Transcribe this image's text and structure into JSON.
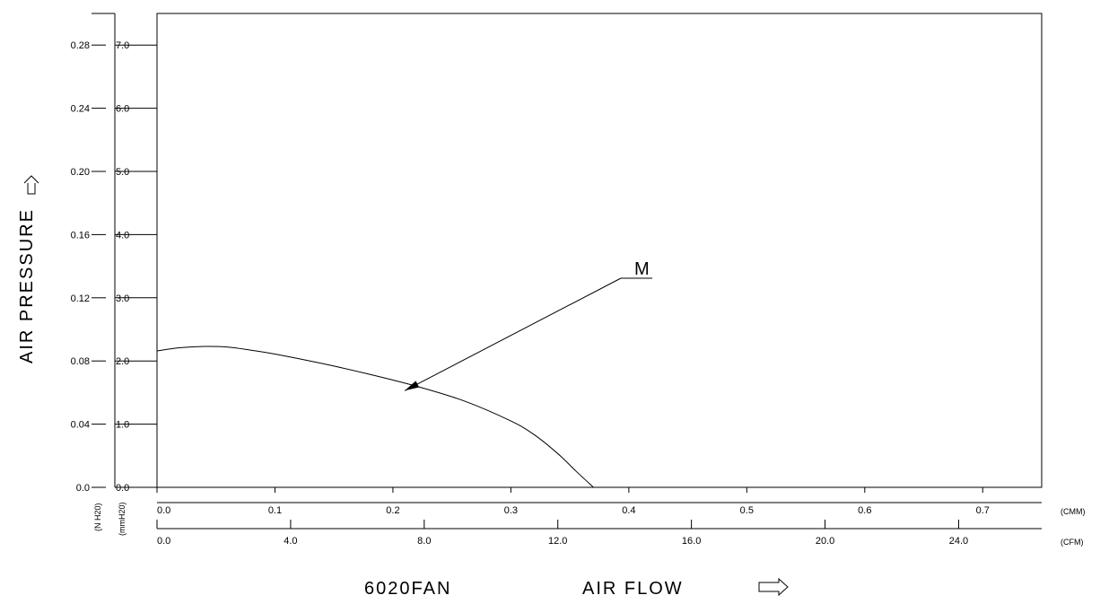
{
  "chart_data": {
    "type": "line",
    "xlabel": "AIR FLOW",
    "ylabel": "AIR PRESSURE",
    "model": "6020FAN",
    "x_axes": {
      "cmm": {
        "unit": "(CMM)",
        "range": [
          0,
          0.75
        ],
        "ticks": [
          "0.0",
          "0.1",
          "0.2",
          "0.3",
          "0.4",
          "0.5",
          "0.6",
          "0.7"
        ],
        "tick_values": [
          0,
          0.1,
          0.2,
          0.3,
          0.4,
          0.5,
          0.6,
          0.7
        ]
      },
      "cfm": {
        "unit": "(CFM)",
        "ticks": [
          "0.0",
          "4.0",
          "8.0",
          "12.0",
          "16.0",
          "20.0",
          "24.0"
        ],
        "tick_values": [
          0,
          4,
          8,
          12,
          16,
          20,
          24
        ]
      }
    },
    "y_axes": {
      "mmh2o": {
        "unit": "(mmH20)",
        "range": [
          0,
          7.5
        ],
        "ticks": [
          "0.0",
          "1.0",
          "2.0",
          "3.0",
          "4.0",
          "5.0",
          "6.0",
          "7.0"
        ],
        "tick_values": [
          0,
          1,
          2,
          3,
          4,
          5,
          6,
          7
        ]
      },
      "inh2o": {
        "unit": "(N H20)",
        "ticks": [
          "0.0",
          "0.04",
          "0.08",
          "0.12",
          "0.16",
          "0.20",
          "0.24",
          "0.28"
        ],
        "tick_values": [
          0,
          0.04,
          0.08,
          0.12,
          0.16,
          0.2,
          0.24,
          0.28
        ]
      }
    },
    "series": [
      {
        "name": "M",
        "x_cmm": [
          0.0,
          0.02,
          0.04,
          0.06,
          0.08,
          0.1,
          0.14,
          0.18,
          0.22,
          0.26,
          0.3,
          0.32,
          0.34,
          0.355,
          0.37
        ],
        "y_mmh2o": [
          2.16,
          2.21,
          2.23,
          2.22,
          2.17,
          2.11,
          1.96,
          1.79,
          1.6,
          1.37,
          1.05,
          0.83,
          0.53,
          0.26,
          0.0
        ]
      }
    ],
    "annotation": {
      "label": "M",
      "point_x_cmm": 0.21,
      "point_y_mmh2o": 1.53
    },
    "grid": false
  }
}
